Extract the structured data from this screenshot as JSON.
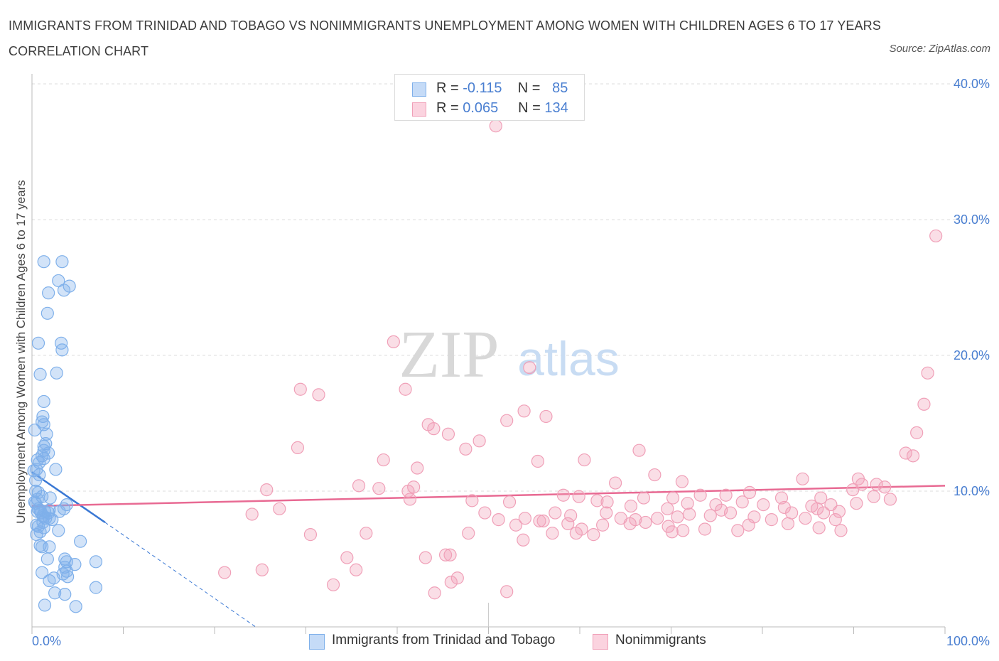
{
  "title": "IMMIGRANTS FROM TRINIDAD AND TOBAGO VS NONIMMIGRANTS UNEMPLOYMENT AMONG WOMEN WITH CHILDREN AGES 6 TO 17 YEARS CORRELATION CHART",
  "source": "Source: ZipAtlas.com",
  "watermark": {
    "zip": "ZIP",
    "atlas": "atlas"
  },
  "stats": [
    {
      "r_label": "R = ",
      "r_value": "-0.115",
      "n_label": "N = ",
      "n_value": "85",
      "color": "#7fb0ea"
    },
    {
      "r_label": "R = ",
      "r_value": "0.065",
      "n_label": "N = ",
      "n_value": "134",
      "color": "#f0a0b8"
    }
  ],
  "legend": [
    {
      "label": "Immigrants from Trinidad and Tobago",
      "color": "#7fb0ea"
    },
    {
      "label": "Nonimmigrants",
      "color": "#f0a0b8"
    }
  ],
  "chart_data": {
    "type": "scatter",
    "title": "IMMIGRANTS FROM TRINIDAD AND TOBAGO VS NONIMMIGRANTS UNEMPLOYMENT AMONG WOMEN WITH CHILDREN AGES 6 TO 17 YEARS CORRELATION CHART",
    "xlabel": "",
    "ylabel": "Unemployment Among Women with Children Ages 6 to 17 years",
    "xlim": [
      0,
      100
    ],
    "ylim": [
      0,
      40
    ],
    "x_ticks": [
      {
        "value": 0,
        "label": "0.0%"
      },
      {
        "value": 100,
        "label": "100.0%"
      }
    ],
    "y_ticks": [
      {
        "value": 10,
        "label": "10.0%"
      },
      {
        "value": 20,
        "label": "20.0%"
      },
      {
        "value": 30,
        "label": "30.0%"
      },
      {
        "value": 40,
        "label": "40.0%"
      }
    ],
    "grid": true,
    "series": [
      {
        "name": "Immigrants from Trinidad and Tobago",
        "color": "#7fb0ea",
        "line_color": "#3a78d4",
        "trend": {
          "x": [
            0,
            8
          ],
          "y": [
            11.4,
            7.7
          ],
          "dashed_to": [
            24.5,
            0
          ]
        },
        "points": [
          [
            1.3,
            26.9
          ],
          [
            3.3,
            26.9
          ],
          [
            2.9,
            25.5
          ],
          [
            4.1,
            25.1
          ],
          [
            1.8,
            24.6
          ],
          [
            3.5,
            24.8
          ],
          [
            1.7,
            23.1
          ],
          [
            0.7,
            20.9
          ],
          [
            3.2,
            20.9
          ],
          [
            3.3,
            20.4
          ],
          [
            2.7,
            18.7
          ],
          [
            0.9,
            18.6
          ],
          [
            1.3,
            16.6
          ],
          [
            1.2,
            15.5
          ],
          [
            1.1,
            15.1
          ],
          [
            1.3,
            14.9
          ],
          [
            0.3,
            14.5
          ],
          [
            1.6,
            14.2
          ],
          [
            1.5,
            13.5
          ],
          [
            1.3,
            13.3
          ],
          [
            1.3,
            13.0
          ],
          [
            1.1,
            12.6
          ],
          [
            1.8,
            12.8
          ],
          [
            0.6,
            12.3
          ],
          [
            0.8,
            12.1
          ],
          [
            1.3,
            12.4
          ],
          [
            0.5,
            11.6
          ],
          [
            2.6,
            11.6
          ],
          [
            0.8,
            11.2
          ],
          [
            0.4,
            10.8
          ],
          [
            0.4,
            10.0
          ],
          [
            0.7,
            9.9
          ],
          [
            1.1,
            9.6
          ],
          [
            0.6,
            9.4
          ],
          [
            0.3,
            9.2
          ],
          [
            0.4,
            9.1
          ],
          [
            0.7,
            8.7
          ],
          [
            0.9,
            8.6
          ],
          [
            0.6,
            8.5
          ],
          [
            1.0,
            8.4
          ],
          [
            1.4,
            8.5
          ],
          [
            1.8,
            8.4
          ],
          [
            1.9,
            8.6
          ],
          [
            3.5,
            8.7
          ],
          [
            3.8,
            9.0
          ],
          [
            1.2,
            8.2
          ],
          [
            1.5,
            8.0
          ],
          [
            1.3,
            8.1
          ],
          [
            1.9,
            8.0
          ],
          [
            0.5,
            7.5
          ],
          [
            1.2,
            7.7
          ],
          [
            1.3,
            7.3
          ],
          [
            0.7,
            7.4
          ],
          [
            2.9,
            7.1
          ],
          [
            5.3,
            6.3
          ],
          [
            0.9,
            6.0
          ],
          [
            1.1,
            5.9
          ],
          [
            1.9,
            5.9
          ],
          [
            3.6,
            5.0
          ],
          [
            3.8,
            4.8
          ],
          [
            1.7,
            5.0
          ],
          [
            4.7,
            4.6
          ],
          [
            7.0,
            4.8
          ],
          [
            3.6,
            4.4
          ],
          [
            3.8,
            4.1
          ],
          [
            3.4,
            3.9
          ],
          [
            3.9,
            3.7
          ],
          [
            1.1,
            4.0
          ],
          [
            2.4,
            3.6
          ],
          [
            1.9,
            3.4
          ],
          [
            2.5,
            2.5
          ],
          [
            3.6,
            2.4
          ],
          [
            7.0,
            2.9
          ],
          [
            1.4,
            1.6
          ],
          [
            4.8,
            1.5
          ],
          [
            0.5,
            6.8
          ],
          [
            0.9,
            7.0
          ],
          [
            2.2,
            7.9
          ],
          [
            3.0,
            8.5
          ],
          [
            0.2,
            11.5
          ],
          [
            2.0,
            9.5
          ]
        ]
      },
      {
        "name": "Nonimmigrants",
        "color": "#f0a0b8",
        "line_color": "#e86a93",
        "trend": {
          "x": [
            0,
            100
          ],
          "y": [
            8.9,
            10.4
          ]
        },
        "points": [
          [
            50.8,
            36.9
          ],
          [
            99.0,
            28.8
          ],
          [
            39.6,
            21.0
          ],
          [
            54.5,
            19.1
          ],
          [
            98.1,
            18.7
          ],
          [
            29.4,
            17.5
          ],
          [
            31.4,
            17.1
          ],
          [
            40.9,
            17.5
          ],
          [
            97.7,
            16.4
          ],
          [
            53.9,
            15.9
          ],
          [
            56.3,
            15.5
          ],
          [
            52.0,
            15.2
          ],
          [
            43.4,
            14.9
          ],
          [
            44.0,
            14.6
          ],
          [
            45.6,
            14.2
          ],
          [
            96.9,
            14.3
          ],
          [
            49.0,
            13.7
          ],
          [
            29.1,
            13.2
          ],
          [
            47.5,
            13.1
          ],
          [
            66.5,
            13.0
          ],
          [
            95.7,
            12.8
          ],
          [
            96.5,
            12.6
          ],
          [
            38.5,
            12.3
          ],
          [
            55.4,
            12.2
          ],
          [
            60.5,
            12.3
          ],
          [
            42.2,
            11.7
          ],
          [
            68.2,
            11.2
          ],
          [
            84.4,
            10.9
          ],
          [
            90.5,
            10.9
          ],
          [
            63.9,
            10.6
          ],
          [
            71.2,
            10.7
          ],
          [
            90.9,
            10.5
          ],
          [
            35.8,
            10.4
          ],
          [
            92.5,
            10.5
          ],
          [
            93.4,
            10.3
          ],
          [
            25.7,
            10.1
          ],
          [
            41.2,
            10.0
          ],
          [
            41.8,
            10.3
          ],
          [
            73.2,
            9.7
          ],
          [
            89.9,
            10.1
          ],
          [
            78.6,
            9.9
          ],
          [
            58.2,
            9.7
          ],
          [
            59.9,
            9.6
          ],
          [
            82.1,
            9.5
          ],
          [
            92.2,
            9.6
          ],
          [
            86.4,
            9.5
          ],
          [
            67.0,
            9.5
          ],
          [
            70.2,
            9.5
          ],
          [
            76.0,
            9.7
          ],
          [
            48.2,
            9.3
          ],
          [
            52.3,
            9.2
          ],
          [
            71.8,
            9.1
          ],
          [
            74.9,
            9.0
          ],
          [
            77.8,
            9.2
          ],
          [
            87.5,
            9.0
          ],
          [
            90.3,
            9.1
          ],
          [
            24.1,
            8.3
          ],
          [
            27.1,
            8.7
          ],
          [
            41.4,
            9.4
          ],
          [
            61.9,
            9.3
          ],
          [
            63.0,
            9.2
          ],
          [
            65.6,
            8.9
          ],
          [
            69.6,
            8.7
          ],
          [
            75.5,
            8.6
          ],
          [
            80.1,
            9.0
          ],
          [
            82.4,
            8.8
          ],
          [
            85.4,
            8.9
          ],
          [
            88.4,
            8.5
          ],
          [
            49.6,
            8.4
          ],
          [
            54.0,
            8.0
          ],
          [
            55.6,
            7.8
          ],
          [
            57.3,
            8.4
          ],
          [
            59.0,
            8.2
          ],
          [
            62.9,
            8.4
          ],
          [
            64.5,
            8.0
          ],
          [
            66.1,
            7.9
          ],
          [
            68.5,
            8.0
          ],
          [
            70.7,
            8.1
          ],
          [
            72.0,
            8.3
          ],
          [
            74.3,
            8.2
          ],
          [
            76.5,
            8.4
          ],
          [
            79.1,
            8.1
          ],
          [
            81.0,
            7.9
          ],
          [
            83.2,
            8.4
          ],
          [
            84.7,
            8.0
          ],
          [
            86.7,
            8.4
          ],
          [
            88.0,
            7.9
          ],
          [
            51.1,
            7.9
          ],
          [
            53.0,
            7.5
          ],
          [
            56.0,
            7.8
          ],
          [
            58.7,
            7.6
          ],
          [
            60.2,
            7.2
          ],
          [
            62.5,
            7.5
          ],
          [
            65.5,
            7.6
          ],
          [
            67.2,
            7.7
          ],
          [
            69.7,
            7.4
          ],
          [
            73.7,
            7.2
          ],
          [
            78.5,
            7.5
          ],
          [
            82.8,
            7.6
          ],
          [
            86.2,
            7.3
          ],
          [
            57.0,
            6.9
          ],
          [
            59.6,
            6.9
          ],
          [
            61.5,
            6.8
          ],
          [
            70.1,
            7.0
          ],
          [
            71.3,
            7.1
          ],
          [
            77.3,
            7.1
          ],
          [
            88.6,
            7.1
          ],
          [
            30.5,
            6.8
          ],
          [
            36.6,
            6.9
          ],
          [
            47.8,
            6.9
          ],
          [
            53.8,
            6.4
          ],
          [
            45.3,
            5.3
          ],
          [
            45.8,
            5.3
          ],
          [
            34.5,
            5.1
          ],
          [
            43.1,
            5.1
          ],
          [
            35.5,
            4.2
          ],
          [
            21.1,
            4.0
          ],
          [
            25.2,
            4.2
          ],
          [
            46.6,
            3.6
          ],
          [
            45.9,
            3.3
          ],
          [
            33.0,
            3.1
          ],
          [
            44.1,
            2.5
          ],
          [
            52.0,
            2.6
          ],
          [
            38.0,
            10.2
          ],
          [
            94.0,
            9.4
          ],
          [
            86.0,
            8.7
          ]
        ]
      }
    ]
  }
}
